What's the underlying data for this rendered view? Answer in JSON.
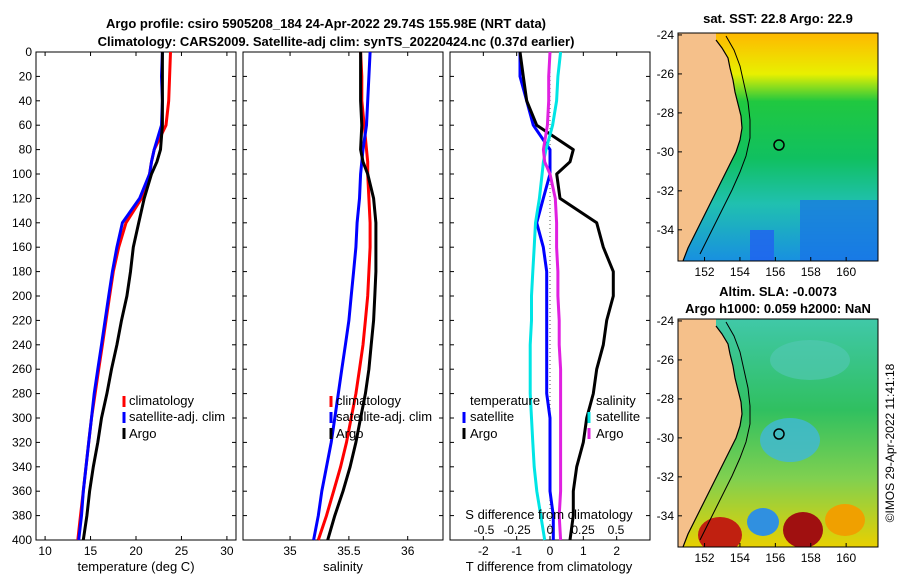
{
  "header": {
    "line1": "Argo profile: csiro 5905208_184 24-Apr-2022 29.74S 155.98E (NRT data)",
    "line2": "Climatology: CARS2009. Satellite-adj clim: synTS_20220424.nc (0.37d earlier)"
  },
  "watermark": "©IMOS 29-Apr-2022 11:41:18",
  "colors": {
    "climatology": "#ff0000",
    "satellite": "#0000ff",
    "argo": "#000000",
    "s_satellite": "#00e5e5",
    "s_argo": "#e020e0"
  },
  "depth_ticks": [
    "0",
    "20",
    "40",
    "60",
    "80",
    "100",
    "120",
    "140",
    "160",
    "180",
    "200",
    "220",
    "240",
    "260",
    "280",
    "300",
    "320",
    "340",
    "360",
    "380",
    "400"
  ],
  "chart_data": [
    {
      "type": "line",
      "title": "",
      "xlabel": "temperature (deg C)",
      "ylabel": "",
      "xlim": [
        9,
        31
      ],
      "ylim": [
        400,
        0
      ],
      "x_ticks": [
        "10",
        "15",
        "20",
        "25",
        "30"
      ],
      "legend": [
        "climatology",
        "satellite-adj. clim",
        "Argo"
      ],
      "depth": [
        0,
        20,
        40,
        60,
        80,
        90,
        100,
        120,
        140,
        160,
        180,
        200,
        220,
        240,
        260,
        280,
        300,
        320,
        340,
        360,
        380,
        400
      ],
      "series": [
        {
          "name": "climatology",
          "values": [
            23.8,
            23.7,
            23.6,
            23.3,
            22.0,
            21.7,
            21.5,
            20.6,
            18.9,
            18.1,
            17.5,
            17.1,
            16.7,
            16.3,
            15.9,
            15.5,
            15.1,
            14.8,
            14.5,
            14.2,
            13.9,
            13.6
          ]
        },
        {
          "name": "satellite-adj. clim",
          "values": [
            22.9,
            22.8,
            22.9,
            22.8,
            22.0,
            21.7,
            21.5,
            20.4,
            18.5,
            17.9,
            17.4,
            17.0,
            16.6,
            16.2,
            15.8,
            15.4,
            15.1,
            14.8,
            14.5,
            14.2,
            14.0,
            13.7
          ]
        },
        {
          "name": "Argo",
          "values": [
            22.9,
            22.9,
            22.9,
            22.9,
            22.7,
            22.3,
            21.7,
            20.9,
            20.3,
            19.7,
            19.4,
            19.0,
            18.4,
            17.9,
            17.3,
            16.8,
            16.2,
            15.8,
            15.3,
            14.9,
            14.6,
            14.2
          ]
        }
      ]
    },
    {
      "type": "line",
      "title": "",
      "xlabel": "salinity",
      "ylabel": "",
      "xlim": [
        34.6,
        36.3
      ],
      "ylim": [
        400,
        0
      ],
      "x_ticks": [
        "35",
        "35.5",
        "36"
      ],
      "legend": [
        "climatology",
        "satellite-adj. clim",
        "Argo"
      ],
      "depth": [
        0,
        20,
        40,
        60,
        80,
        90,
        100,
        120,
        140,
        160,
        180,
        200,
        220,
        240,
        260,
        280,
        300,
        320,
        340,
        360,
        380,
        400
      ],
      "series": [
        {
          "name": "climatology",
          "values": [
            35.6,
            35.61,
            35.61,
            35.63,
            35.65,
            35.66,
            35.66,
            35.67,
            35.68,
            35.68,
            35.67,
            35.66,
            35.64,
            35.62,
            35.59,
            35.56,
            35.52,
            35.48,
            35.43,
            35.37,
            35.31,
            35.24
          ]
        },
        {
          "name": "satellite-adj. clim",
          "values": [
            35.68,
            35.67,
            35.66,
            35.65,
            35.62,
            35.61,
            35.6,
            35.59,
            35.57,
            35.56,
            35.54,
            35.52,
            35.5,
            35.47,
            35.44,
            35.41,
            35.38,
            35.35,
            35.31,
            35.27,
            35.24,
            35.2
          ]
        },
        {
          "name": "Argo",
          "values": [
            35.6,
            35.6,
            35.6,
            35.61,
            35.6,
            35.62,
            35.66,
            35.71,
            35.73,
            35.73,
            35.73,
            35.72,
            35.71,
            35.69,
            35.67,
            35.64,
            35.6,
            35.56,
            35.51,
            35.45,
            35.38,
            35.32
          ]
        }
      ]
    },
    {
      "type": "line",
      "title": "",
      "xlabel": "T difference from climatology",
      "ylabel": "",
      "xlim": [
        -3,
        3
      ],
      "ylim": [
        400,
        0
      ],
      "x_ticks": [
        "-2",
        "-1",
        "0",
        "1",
        "2"
      ],
      "top_axis_label": "S difference from climatology",
      "top_ticks": [
        "-0.5",
        "-0.25",
        "0",
        "0.25",
        "0.5"
      ],
      "legend_left_title": "temperature",
      "legend_right_title": "salinity",
      "legend": [
        "satellite",
        "Argo",
        "satellite",
        "Argo"
      ],
      "depth": [
        0,
        20,
        40,
        60,
        80,
        90,
        100,
        120,
        140,
        160,
        180,
        200,
        220,
        240,
        260,
        280,
        300,
        320,
        340,
        360,
        380,
        400
      ],
      "series": [
        {
          "name": "T satellite",
          "values": [
            -0.9,
            -0.9,
            -0.7,
            -0.5,
            0.0,
            0.0,
            0.0,
            -0.2,
            -0.4,
            -0.2,
            -0.1,
            -0.1,
            -0.1,
            -0.1,
            -0.1,
            -0.1,
            0.0,
            0.0,
            0.0,
            0.0,
            0.1,
            0.1
          ]
        },
        {
          "name": "T Argo",
          "values": [
            -0.9,
            -0.8,
            -0.7,
            -0.4,
            0.7,
            0.6,
            0.2,
            0.3,
            1.4,
            1.6,
            1.9,
            1.9,
            1.7,
            1.6,
            1.4,
            1.3,
            1.1,
            1.0,
            0.8,
            0.7,
            0.7,
            0.6
          ]
        },
        {
          "name": "S satellite",
          "values": [
            0.08,
            0.06,
            0.05,
            0.02,
            -0.03,
            -0.05,
            -0.06,
            -0.08,
            -0.11,
            -0.12,
            -0.13,
            -0.14,
            -0.14,
            -0.15,
            -0.15,
            -0.15,
            -0.14,
            -0.13,
            -0.12,
            -0.1,
            -0.07,
            -0.04
          ]
        },
        {
          "name": "S Argo",
          "values": [
            0.0,
            -0.01,
            -0.01,
            -0.02,
            -0.05,
            -0.04,
            0.0,
            0.04,
            0.05,
            0.05,
            0.06,
            0.06,
            0.07,
            0.07,
            0.08,
            0.08,
            0.08,
            0.08,
            0.08,
            0.08,
            0.07,
            0.08
          ]
        }
      ]
    }
  ],
  "maps": [
    {
      "title1": "sat. SST: 22.8 Argo: 22.9",
      "title2": "",
      "x_ticks": [
        "152",
        "154",
        "156",
        "158",
        "160"
      ],
      "y_ticks": [
        "-24",
        "-26",
        "-28",
        "-30",
        "-32",
        "-34"
      ]
    },
    {
      "title1": "Altim. SLA: -0.0073",
      "title2": "Argo h1000: 0.059 h2000: NaN",
      "x_ticks": [
        "152",
        "154",
        "156",
        "158",
        "160"
      ],
      "y_ticks": [
        "-24",
        "-26",
        "-28",
        "-30",
        "-32",
        "-34"
      ]
    }
  ]
}
